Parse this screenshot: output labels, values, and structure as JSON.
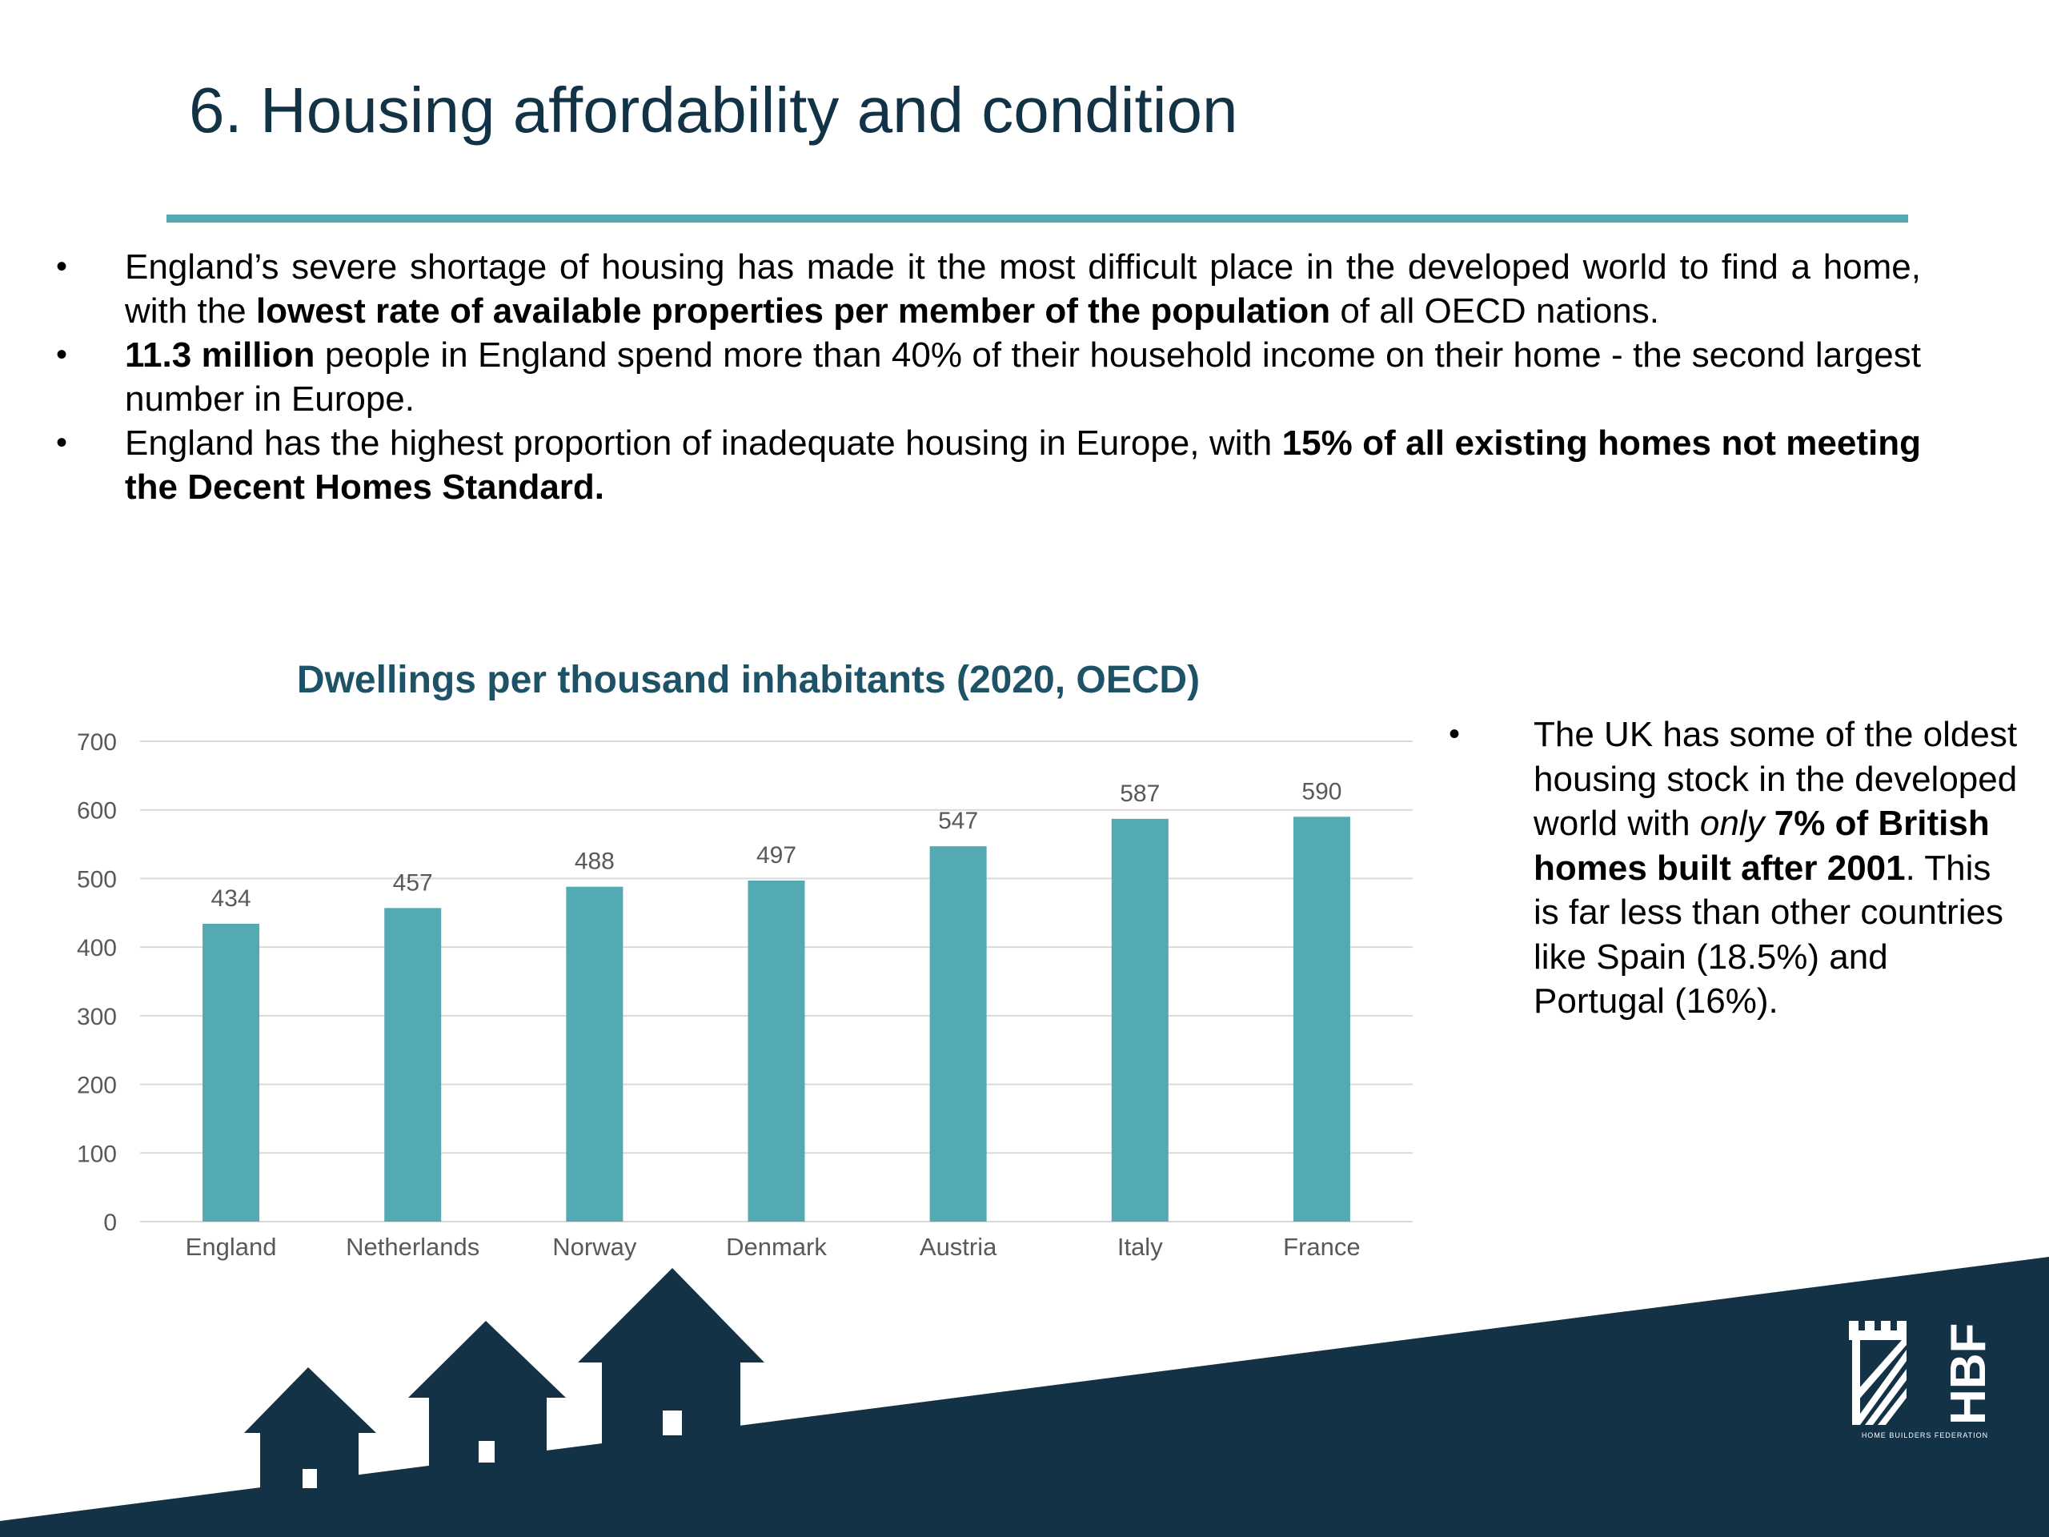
{
  "page": {
    "title": "6. Housing affordability and condition"
  },
  "bullets": [
    {
      "parts": [
        {
          "text": "England’s severe shortage of housing has made it the most difficult place in the developed world to find a home, with the ",
          "bold": false
        },
        {
          "text": "lowest rate of available properties per member of the population",
          "bold": true
        },
        {
          "text": " of all OECD nations.",
          "bold": false
        }
      ]
    },
    {
      "parts": [
        {
          "text": "11.3 million",
          "bold": true
        },
        {
          "text": " people in England spend more than 40% of their household income on their home - the second largest number in Europe.",
          "bold": false
        }
      ]
    },
    {
      "parts": [
        {
          "text": "England has the highest proportion of inadequate housing in Europe, with ",
          "bold": false
        },
        {
          "text": "15% of all existing homes not meeting the Decent Homes Standard.",
          "bold": true
        }
      ]
    }
  ],
  "side_note": {
    "parts": [
      {
        "text": "The UK has some of the oldest housing stock in the developed world with ",
        "bold": false,
        "italic": false
      },
      {
        "text": "only",
        "bold": false,
        "italic": true
      },
      {
        "text": " ",
        "bold": false,
        "italic": false
      },
      {
        "text": "7% of British homes built after 2001",
        "bold": true,
        "italic": false
      },
      {
        "text": ". This is far less than other countries like Spain (18.5%) and Portugal (16%).",
        "bold": false,
        "italic": false
      }
    ]
  },
  "chart_data": {
    "type": "bar",
    "title": "Dwellings per thousand inhabitants (2020, OECD)",
    "categories": [
      "England",
      "Netherlands",
      "Norway",
      "Denmark",
      "Austria",
      "Italy",
      "France"
    ],
    "values": [
      434,
      457,
      488,
      497,
      547,
      587,
      590
    ],
    "ylim": [
      0,
      700
    ],
    "yticks": [
      0,
      100,
      200,
      300,
      400,
      500,
      600,
      700
    ],
    "xlabel": "",
    "ylabel": "",
    "grid": true,
    "data_labels": true,
    "bar_color": "#54aab2",
    "grid_color": "#d9d9d9",
    "label_color": "#595959"
  },
  "logo": {
    "text": "HBF",
    "caption": "HOME BUILDERS FEDERATION"
  },
  "colors": {
    "title": "#123246",
    "accent": "#54aab2",
    "navy": "#143246",
    "chart_title": "#1e5266"
  }
}
